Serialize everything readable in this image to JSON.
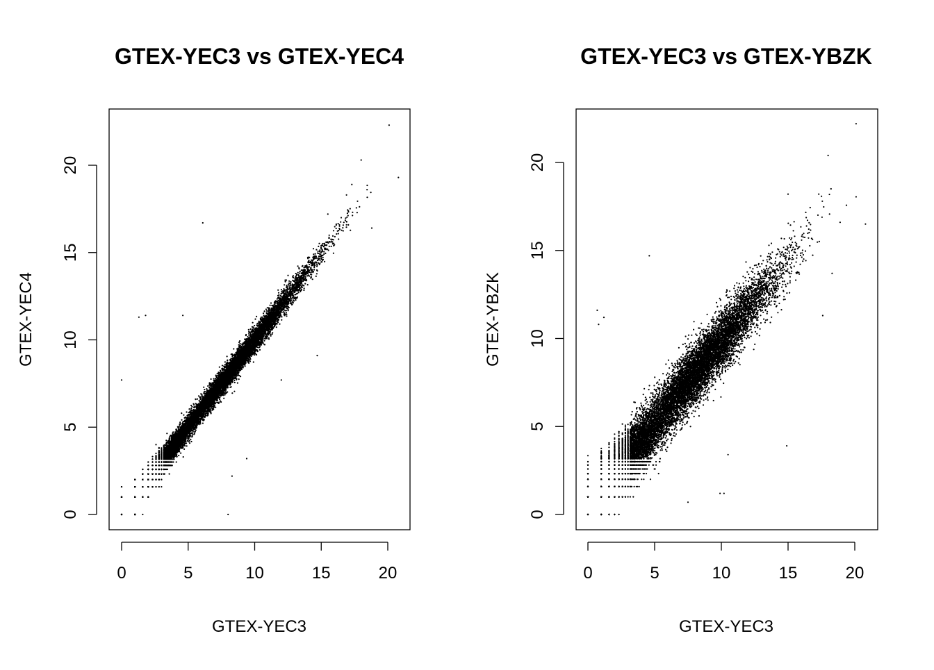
{
  "chart_data": [
    {
      "type": "scatter",
      "title": "GTEX-YEC3 vs GTEX-YEC4",
      "xlabel": "GTEX-YEC3",
      "ylabel": "GTEX-YEC4",
      "xlim": [
        0,
        20.8
      ],
      "ylim": [
        0,
        22.3
      ],
      "xticks": [
        0,
        5,
        10,
        15,
        20
      ],
      "yticks": [
        0,
        5,
        10,
        15,
        20
      ],
      "grid": false,
      "distribution": {
        "n_points": 14000,
        "correlation": "very high",
        "noise_sd": 0.35,
        "center": 8,
        "spread": 3,
        "low_fraction": 0.3
      },
      "notable_points": [
        {
          "x": 20.1,
          "y": 22.3
        },
        {
          "x": 20.8,
          "y": 19.3
        },
        {
          "x": 18.0,
          "y": 20.3
        },
        {
          "x": 18.8,
          "y": 16.4
        },
        {
          "x": 6.1,
          "y": 16.7
        },
        {
          "x": 1.3,
          "y": 11.3
        },
        {
          "x": 1.8,
          "y": 11.4
        },
        {
          "x": 4.6,
          "y": 11.4
        },
        {
          "x": 0,
          "y": 7.7
        },
        {
          "x": 14.7,
          "y": 9.1
        },
        {
          "x": 12.0,
          "y": 7.7
        },
        {
          "x": 8.0,
          "y": 0
        },
        {
          "x": 9.4,
          "y": 3.2
        },
        {
          "x": 8.3,
          "y": 2.2
        },
        {
          "x": 17.3,
          "y": 18.9
        },
        {
          "x": 16.9,
          "y": 18.3
        },
        {
          "x": 15.5,
          "y": 17.2
        }
      ]
    },
    {
      "type": "scatter",
      "title": "GTEX-YEC3 vs GTEX-YBZK",
      "xlabel": "GTEX-YEC3",
      "ylabel": "GTEX-YBZK",
      "xlim": [
        0,
        20.8
      ],
      "ylim": [
        0,
        22.2
      ],
      "xticks": [
        0,
        5,
        10,
        15,
        20
      ],
      "yticks": [
        0,
        5,
        10,
        15,
        20
      ],
      "grid": false,
      "distribution": {
        "n_points": 14000,
        "correlation": "high",
        "noise_sd": 0.85,
        "center": 8,
        "spread": 3,
        "low_fraction": 0.3
      },
      "notable_points": [
        {
          "x": 20.1,
          "y": 22.2
        },
        {
          "x": 18.0,
          "y": 20.4
        },
        {
          "x": 20.8,
          "y": 16.5
        },
        {
          "x": 18.9,
          "y": 16.6
        },
        {
          "x": 15.0,
          "y": 18.2
        },
        {
          "x": 17.3,
          "y": 18.2
        },
        {
          "x": 4.6,
          "y": 14.7
        },
        {
          "x": 0.7,
          "y": 11.6
        },
        {
          "x": 0.8,
          "y": 10.8
        },
        {
          "x": 1.2,
          "y": 11.2
        },
        {
          "x": 14.9,
          "y": 3.9
        },
        {
          "x": 10.5,
          "y": 3.4
        },
        {
          "x": 7.5,
          "y": 0.7
        },
        {
          "x": 18.3,
          "y": 13.7
        },
        {
          "x": 17.6,
          "y": 11.3
        },
        {
          "x": 9.9,
          "y": 1.2
        },
        {
          "x": 10.2,
          "y": 1.2
        }
      ]
    }
  ]
}
